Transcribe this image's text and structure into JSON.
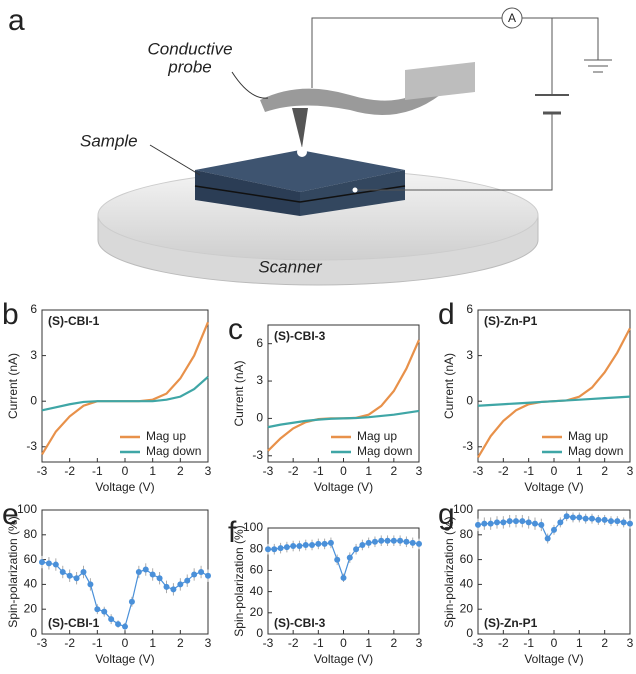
{
  "diagram": {
    "panel": "a",
    "probe_label": [
      "Conductive",
      "probe"
    ],
    "sample_label": "Sample",
    "scanner_label": "Scanner",
    "ammeter": "A"
  },
  "chart_data": [
    {
      "type": "line",
      "panel": "b",
      "annotation": "(S)-CBI-1",
      "xlabel": "Voltage (V)",
      "ylabel": "Current (nA)",
      "x": [
        -3,
        -2.5,
        -2,
        -1.5,
        -1,
        -0.5,
        0,
        0.5,
        1,
        1.5,
        2,
        2.5,
        3
      ],
      "series": [
        {
          "name": "Mag up",
          "color": "#e8914a",
          "values": [
            -3.5,
            -2.0,
            -1.0,
            -0.3,
            0,
            0,
            0,
            0,
            0.1,
            0.5,
            1.5,
            3.0,
            5.2
          ]
        },
        {
          "name": "Mag down",
          "color": "#3fa6a6",
          "values": [
            -0.6,
            -0.4,
            -0.2,
            -0.05,
            0,
            0,
            0,
            0,
            0,
            0.1,
            0.3,
            0.8,
            1.6
          ]
        }
      ],
      "xlim": [
        -3,
        3
      ],
      "xticks": [
        -3,
        -2,
        -1,
        0,
        1,
        2,
        3
      ],
      "ylim": [
        -4,
        6
      ],
      "yticks": [
        -3,
        0,
        3,
        6
      ],
      "legend": "lower right"
    },
    {
      "type": "line",
      "panel": "c",
      "annotation": "(S)-CBI-3",
      "xlabel": "Voltage (V)",
      "ylabel": "Current (nA)",
      "x": [
        -3,
        -2.5,
        -2,
        -1.5,
        -1,
        -0.5,
        0,
        0.5,
        1,
        1.5,
        2,
        2.5,
        3
      ],
      "series": [
        {
          "name": "Mag up",
          "color": "#e8914a",
          "values": [
            -2.6,
            -1.6,
            -0.8,
            -0.3,
            -0.05,
            0,
            0,
            0.05,
            0.3,
            1.0,
            2.2,
            4.0,
            6.3
          ]
        },
        {
          "name": "Mag down",
          "color": "#3fa6a6",
          "values": [
            -0.7,
            -0.5,
            -0.35,
            -0.2,
            -0.1,
            -0.03,
            0,
            0.03,
            0.1,
            0.2,
            0.3,
            0.45,
            0.6
          ]
        }
      ],
      "xlim": [
        -3,
        3
      ],
      "xticks": [
        -3,
        -2,
        -1,
        0,
        1,
        2,
        3
      ],
      "ylim": [
        -3.5,
        7.5
      ],
      "yticks": [
        -3,
        0,
        3,
        6
      ],
      "legend": "lower right"
    },
    {
      "type": "line",
      "panel": "d",
      "annotation": "(S)-Zn-P1",
      "xlabel": "Voltage (V)",
      "ylabel": "Current (nA)",
      "x": [
        -3,
        -2.5,
        -2,
        -1.5,
        -1,
        -0.5,
        0,
        0.5,
        1,
        1.5,
        2,
        2.5,
        3
      ],
      "series": [
        {
          "name": "Mag up",
          "color": "#e8914a",
          "values": [
            -3.7,
            -2.3,
            -1.3,
            -0.6,
            -0.2,
            -0.05,
            0,
            0.05,
            0.3,
            0.9,
            1.9,
            3.2,
            4.8
          ]
        },
        {
          "name": "Mag down",
          "color": "#3fa6a6",
          "values": [
            -0.3,
            -0.25,
            -0.2,
            -0.15,
            -0.1,
            -0.05,
            0,
            0.05,
            0.1,
            0.15,
            0.2,
            0.25,
            0.3
          ]
        }
      ],
      "xlim": [
        -3,
        3
      ],
      "xticks": [
        -3,
        -2,
        -1,
        0,
        1,
        2,
        3
      ],
      "ylim": [
        -4,
        6
      ],
      "yticks": [
        -3,
        0,
        3,
        6
      ],
      "legend": "lower right"
    },
    {
      "type": "errorbar",
      "panel": "e",
      "annotation": "(S)-CBI-1",
      "xlabel": "Voltage (V)",
      "ylabel": "Spin-polarization (%)",
      "x": [
        -3,
        -2.75,
        -2.5,
        -2.25,
        -2,
        -1.75,
        -1.5,
        -1.25,
        -1,
        -0.75,
        -0.5,
        -0.25,
        0,
        0.25,
        0.5,
        0.75,
        1,
        1.25,
        1.5,
        1.75,
        2,
        2.25,
        2.5,
        2.75,
        3
      ],
      "values": [
        58,
        57,
        56,
        50,
        47,
        45,
        50,
        40,
        20,
        18,
        12,
        8,
        6,
        26,
        50,
        52,
        48,
        45,
        38,
        36,
        40,
        43,
        48,
        50,
        47
      ],
      "errors": [
        5,
        5,
        5,
        5,
        5,
        5,
        5,
        5,
        4,
        4,
        4,
        3,
        3,
        4,
        5,
        5,
        5,
        5,
        5,
        5,
        5,
        5,
        5,
        5,
        5
      ],
      "color": "#4a90d9",
      "xlim": [
        -3,
        3
      ],
      "xticks": [
        -3,
        -2,
        -1,
        0,
        1,
        2,
        3
      ],
      "ylim": [
        0,
        100
      ],
      "yticks": [
        0,
        20,
        40,
        60,
        80,
        100
      ]
    },
    {
      "type": "errorbar",
      "panel": "f",
      "annotation": "(S)-CBI-3",
      "xlabel": "Voltage (V)",
      "ylabel": "Spin-polarization (%)",
      "x": [
        -3,
        -2.75,
        -2.5,
        -2.25,
        -2,
        -1.75,
        -1.5,
        -1.25,
        -1,
        -0.75,
        -0.5,
        -0.25,
        0,
        0.25,
        0.5,
        0.75,
        1,
        1.25,
        1.5,
        1.75,
        2,
        2.25,
        2.5,
        2.75,
        3
      ],
      "values": [
        80,
        80,
        81,
        82,
        83,
        83,
        84,
        84,
        85,
        85,
        86,
        70,
        53,
        72,
        80,
        84,
        86,
        87,
        88,
        88,
        88,
        88,
        87,
        86,
        85
      ],
      "errors": [
        5,
        5,
        5,
        5,
        5,
        5,
        5,
        5,
        5,
        5,
        5,
        5,
        4,
        5,
        5,
        5,
        5,
        5,
        5,
        5,
        5,
        5,
        5,
        5,
        5
      ],
      "color": "#4a90d9",
      "xlim": [
        -3,
        3
      ],
      "xticks": [
        -3,
        -2,
        -1,
        0,
        1,
        2,
        3
      ],
      "ylim": [
        0,
        100
      ],
      "yticks": [
        0,
        20,
        40,
        60,
        80,
        100
      ]
    },
    {
      "type": "errorbar",
      "panel": "g",
      "annotation": "(S)-Zn-P1",
      "xlabel": "Voltage (V)",
      "ylabel": "Spin-polarization (%)",
      "x": [
        -3,
        -2.75,
        -2.5,
        -2.25,
        -2,
        -1.75,
        -1.5,
        -1.25,
        -1,
        -0.75,
        -0.5,
        -0.25,
        0,
        0.25,
        0.5,
        0.75,
        1,
        1.25,
        1.5,
        1.75,
        2,
        2.25,
        2.5,
        2.75,
        3
      ],
      "values": [
        88,
        89,
        89,
        90,
        90,
        91,
        91,
        91,
        90,
        89,
        88,
        77,
        84,
        90,
        95,
        94,
        94,
        93,
        93,
        92,
        92,
        91,
        91,
        90,
        89
      ],
      "errors": [
        5,
        5,
        5,
        5,
        5,
        5,
        5,
        5,
        5,
        5,
        5,
        4,
        4,
        4,
        4,
        4,
        4,
        4,
        4,
        4,
        4,
        4,
        4,
        4,
        4
      ],
      "color": "#4a90d9",
      "xlim": [
        -3,
        3
      ],
      "xticks": [
        -3,
        -2,
        -1,
        0,
        1,
        2,
        3
      ],
      "ylim": [
        0,
        100
      ],
      "yticks": [
        0,
        20,
        40,
        60,
        80,
        100
      ]
    }
  ]
}
